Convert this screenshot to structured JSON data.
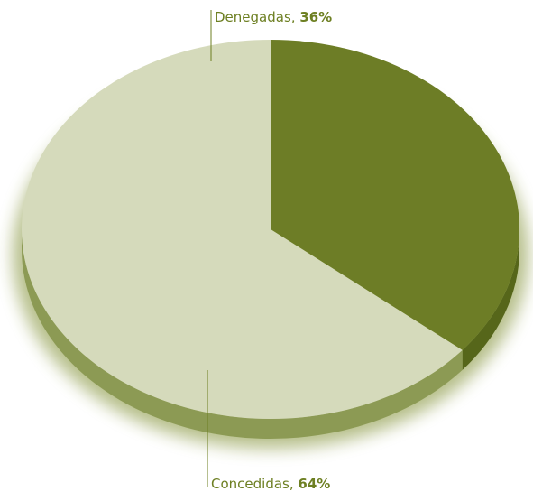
{
  "chart_data": {
    "type": "pie",
    "slices": [
      {
        "label": "Denegadas",
        "value": 36,
        "value_text": "36%",
        "color": "#6d7d26",
        "side_color": "#56661a"
      },
      {
        "label": "Concedidas",
        "value": 64,
        "value_text": "64%",
        "color": "#d5dabb",
        "side_color": "#8c9a54"
      }
    ],
    "legend": "none",
    "grid": false,
    "label_color": "#6d7f22"
  }
}
